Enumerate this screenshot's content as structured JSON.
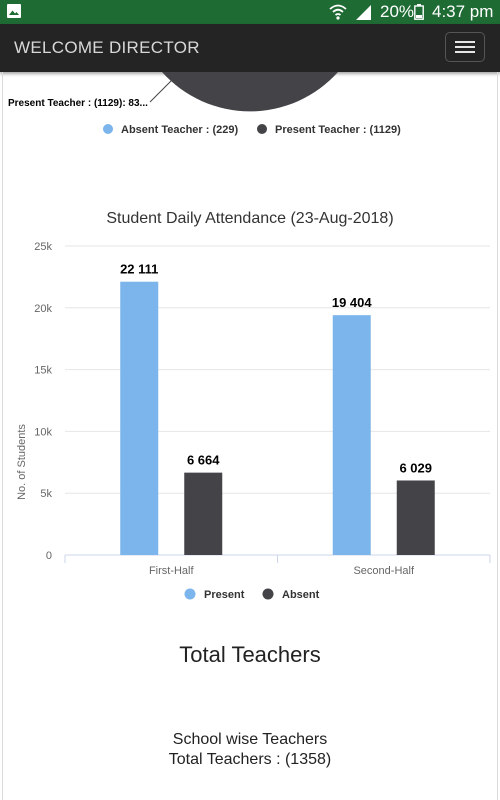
{
  "status_bar": {
    "battery": "20%",
    "time": "4:37 pm"
  },
  "app_bar": {
    "title": "WELCOME DIRECTOR",
    "menu_icon": "hamburger-icon"
  },
  "teacher_pie": {
    "slice_label": "Present Teacher : (1129): 83...",
    "legend": [
      {
        "label": "Absent Teacher : (229)",
        "color": "#7cb5ec"
      },
      {
        "label": "Present Teacher : (1129)",
        "color": "#434348"
      }
    ]
  },
  "chart_data": {
    "type": "bar",
    "title": "Student Daily Attendance (23-Aug-2018)",
    "ylabel": "No. of Students",
    "xlabel": "",
    "categories": [
      "First-Half",
      "Second-Half"
    ],
    "series": [
      {
        "name": "Present",
        "color": "#7cb5ec",
        "values": [
          22111,
          19404
        ],
        "labels": [
          "22 111",
          "19 404"
        ]
      },
      {
        "name": "Absent",
        "color": "#434348",
        "values": [
          6664,
          6029
        ],
        "labels": [
          "6 664",
          "6 029"
        ]
      }
    ],
    "ylim": [
      0,
      25000
    ],
    "yticks": [
      0,
      5000,
      10000,
      15000,
      20000,
      25000
    ],
    "ytick_labels": [
      "0",
      "5k",
      "10k",
      "15k",
      "20k",
      "25k"
    ],
    "grid": true,
    "legend_position": "bottom"
  },
  "sections": {
    "total_teachers_heading": "Total Teachers",
    "school_wise_heading": "School wise Teachers",
    "total_teachers_value": "Total Teachers : (1358)"
  }
}
